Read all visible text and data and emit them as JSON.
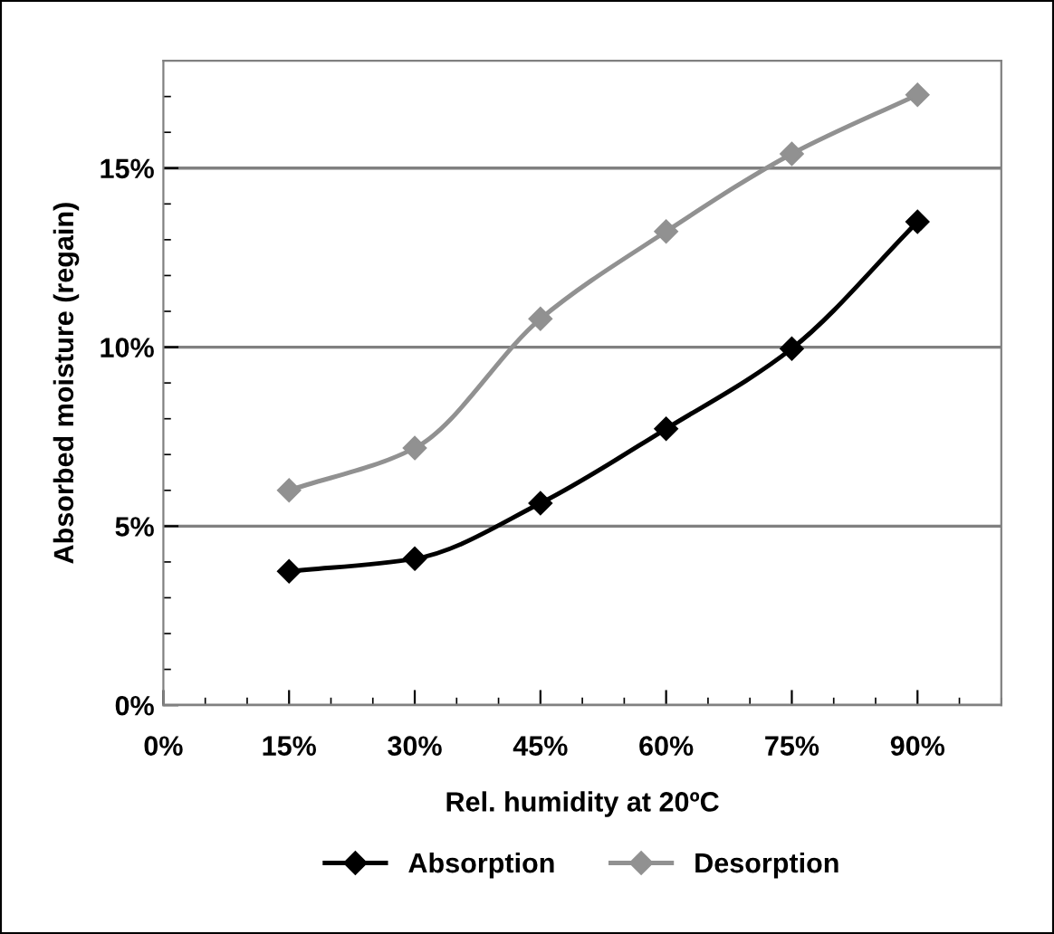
{
  "chart_data": {
    "type": "line",
    "xlabel": "Rel. humidity at 20ºC",
    "ylabel": "Absorbed moisture (regain)",
    "x": [
      15,
      30,
      45,
      60,
      75,
      90
    ],
    "series": [
      {
        "name": "Absorption",
        "color": "#000000",
        "values": [
          3.74,
          4.09,
          5.64,
          7.72,
          9.96,
          13.5
        ]
      },
      {
        "name": "Desorption",
        "color": "#919191",
        "values": [
          6.0,
          7.18,
          10.79,
          13.23,
          15.4,
          17.05
        ]
      }
    ],
    "xlim": [
      0,
      100
    ],
    "xticks": [
      {
        "value": 0,
        "label": "0%"
      },
      {
        "value": 15,
        "label": "15%"
      },
      {
        "value": 30,
        "label": "30%"
      },
      {
        "value": 45,
        "label": "45%"
      },
      {
        "value": 60,
        "label": "60%"
      },
      {
        "value": 75,
        "label": "75%"
      },
      {
        "value": 90,
        "label": "90%"
      }
    ],
    "ylim": [
      0,
      18
    ],
    "yticks": [
      {
        "value": 0,
        "label": "0%"
      },
      {
        "value": 5,
        "label": "5%"
      },
      {
        "value": 10,
        "label": "10%"
      },
      {
        "value": 15,
        "label": "15%"
      }
    ],
    "grid": "y",
    "legend": "bottom",
    "marker": "diamond",
    "line_style": "solid"
  }
}
